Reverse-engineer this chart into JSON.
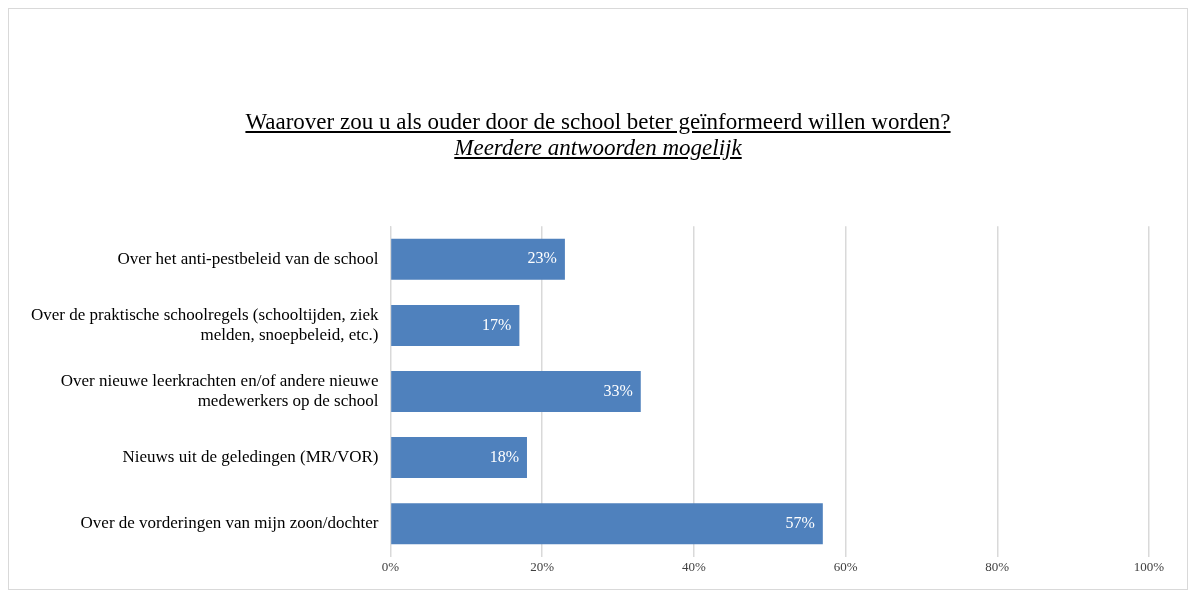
{
  "chart_data": {
    "type": "bar",
    "orientation": "horizontal",
    "title": "Waarover zou u als ouder door de school beter geïnformeerd willen worden?",
    "subtitle": "Meerdere antwoorden mogelijk",
    "categories": [
      "Over het anti-pestbeleid van de school",
      "Over de praktische schoolregels (schooltijden, ziek melden, snoepbeleid, etc.)",
      "Over nieuwe leerkrachten en/of andere nieuwe medewerkers op de school",
      "Nieuws uit de geledingen (MR/VOR)",
      "Over de vorderingen van mijn zoon/dochter"
    ],
    "values": [
      23,
      17,
      33,
      18,
      57
    ],
    "value_labels": [
      "23%",
      "17%",
      "33%",
      "18%",
      "57%"
    ],
    "color": "#4f81bd",
    "xlim": [
      0,
      100
    ],
    "xticks": [
      {
        "value": 0,
        "label": "0%"
      },
      {
        "value": 20,
        "label": "20%"
      },
      {
        "value": 40,
        "label": "40%"
      },
      {
        "value": 60,
        "label": "60%"
      },
      {
        "value": 80,
        "label": "80%"
      },
      {
        "value": 100,
        "label": "100%"
      }
    ],
    "grid": "x",
    "legend": false
  }
}
